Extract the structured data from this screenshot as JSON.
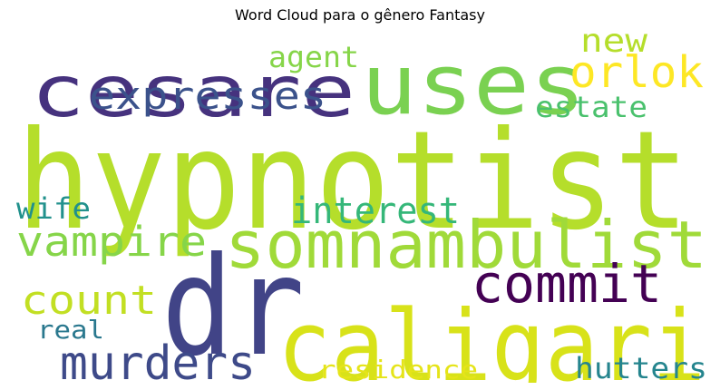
{
  "title": "Word Cloud para o gênero Fantasy",
  "words": [
    {
      "id": "hypnotist",
      "text": "hypnotist",
      "color": "#b5de2b"
    },
    {
      "id": "dr",
      "text": "dr",
      "color": "#414487"
    },
    {
      "id": "uses",
      "text": "uses",
      "color": "#7ad151"
    },
    {
      "id": "cesare",
      "text": "cesare",
      "color": "#46327e"
    },
    {
      "id": "caligari",
      "text": "caligari",
      "color": "#d8e219"
    },
    {
      "id": "somnambulist",
      "text": "somnambulist",
      "color": "#a0da39"
    },
    {
      "id": "expresses",
      "text": "expresses",
      "color": "#3b528b"
    },
    {
      "id": "orlok",
      "text": "orlok",
      "color": "#fde725"
    },
    {
      "id": "commit",
      "text": "commit",
      "color": "#440154"
    },
    {
      "id": "vampire",
      "text": "vampire",
      "color": "#86d549"
    },
    {
      "id": "murders",
      "text": "murders",
      "color": "#3e4a89"
    },
    {
      "id": "interest",
      "text": "interest",
      "color": "#35b779"
    },
    {
      "id": "count",
      "text": "count",
      "color": "#c2df23"
    },
    {
      "id": "new",
      "text": "new",
      "color": "#b5de2b"
    },
    {
      "id": "agent",
      "text": "agent",
      "color": "#86d549"
    },
    {
      "id": "estate",
      "text": "estate",
      "color": "#4ac16d"
    },
    {
      "id": "wife",
      "text": "wife",
      "color": "#21918c"
    },
    {
      "id": "real",
      "text": "real",
      "color": "#2a788e"
    },
    {
      "id": "residence",
      "text": "residence",
      "color": "#e5e419"
    },
    {
      "id": "hutters",
      "text": "hutters",
      "color": "#25858e"
    }
  ]
}
